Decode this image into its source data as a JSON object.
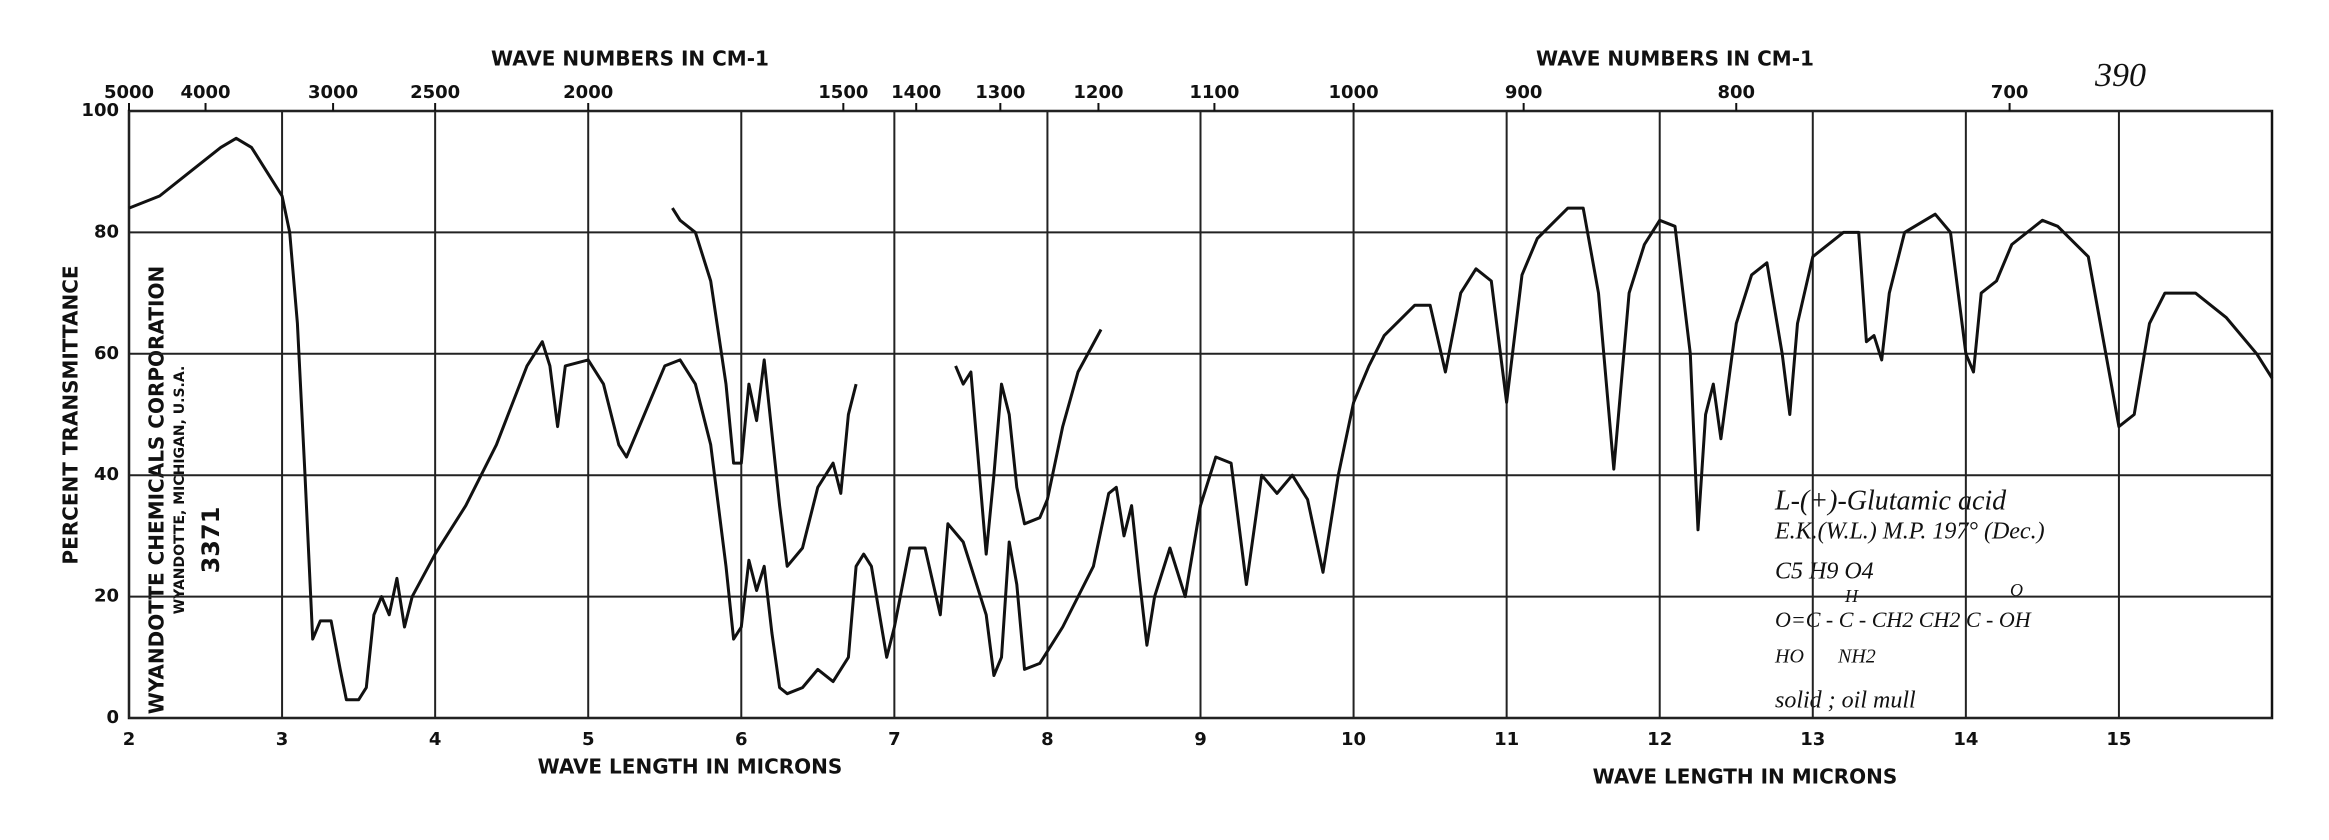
{
  "chart_data": {
    "type": "line",
    "title": "WAVE NUMBERS IN CM-1",
    "x_label": "WAVE LENGTH IN MICRONS",
    "y_label": "PERCENT TRANSMITTANCE",
    "xlim": [
      2,
      16
    ],
    "xticks": [
      2,
      3,
      4,
      5,
      6,
      7,
      8,
      9,
      10,
      11,
      12,
      13,
      14,
      15
    ],
    "ylim": [
      0,
      100
    ],
    "yticks": [
      0,
      20,
      40,
      60,
      80,
      100
    ],
    "x2ticks": [
      5000,
      4000,
      3000,
      2500,
      2000,
      1500,
      1400,
      1300,
      1200,
      1100,
      1000,
      900,
      800,
      700
    ],
    "grid": true,
    "annotations": [
      "390",
      "WYANDOTTE CHEMICALS CORPORATION",
      "WYANDOTTE, MICHIGAN, U.S.A.",
      "3371",
      "L-(+)-Glutamic acid",
      "E.K.(W.L.)  M.P. 197° (Dec.)",
      "C5 H9 O4",
      "O=C - C - CH2 CH2 C - OH",
      "HO",
      "H",
      "NH2",
      "O",
      "solid ; oil mull"
    ],
    "series": [
      {
        "color": "#111111",
        "x": [
          2,
          2.2,
          2.4,
          2.6,
          2.7,
          2.8,
          2.9,
          3,
          3.05,
          3.1,
          3.15,
          3.2,
          3.25,
          3.32,
          3.38,
          3.42,
          3.5,
          3.55,
          3.6,
          3.65,
          3.7,
          3.75,
          3.8,
          3.85,
          4,
          4.2,
          4.4,
          4.6,
          4.7,
          4.75,
          4.8,
          4.85,
          5,
          5.1,
          5.2,
          5.25,
          5.4,
          5.5,
          5.6,
          5.7,
          5.8,
          5.9,
          5.95,
          6,
          6.05,
          6.1,
          6.15,
          6.2,
          6.25,
          6.3,
          6.4,
          6.5,
          6.6,
          6.7,
          6.75,
          6.8,
          6.85,
          6.95,
          7,
          7.1,
          7.2,
          7.3,
          7.35,
          7.45,
          7.5,
          7.6,
          7.65,
          7.7,
          7.75,
          7.8,
          7.85,
          7.95,
          8.1,
          8.3,
          8.4,
          8.45,
          8.5,
          8.55,
          8.6,
          8.65,
          8.7,
          8.8,
          8.9,
          9,
          9.1,
          9.2,
          9.3,
          9.4,
          9.5,
          9.6,
          9.7,
          9.8,
          9.9,
          10,
          10.1,
          10.2,
          10.4,
          10.5,
          10.6,
          10.7,
          10.8,
          10.9,
          11,
          11.1,
          11.2,
          11.4,
          11.5,
          11.6,
          11.7,
          11.8,
          11.9,
          12,
          12.1,
          12.2,
          12.25,
          12.3,
          12.35,
          12.4,
          12.5,
          12.6,
          12.7,
          12.8,
          12.85,
          12.9,
          13,
          13.2,
          13.3,
          13.35,
          13.4,
          13.45,
          13.5,
          13.6,
          13.8,
          13.9,
          14,
          14.05,
          14.1,
          14.2,
          14.3,
          14.5,
          14.6,
          14.8,
          14.95,
          15,
          15.1,
          15.2,
          15.3,
          15.5,
          15.7,
          15.9,
          16
        ],
        "values": [
          84,
          86,
          90,
          94,
          95.5,
          94,
          90,
          86,
          80,
          65,
          40,
          13,
          16,
          16,
          8,
          3,
          3,
          5,
          17,
          20,
          17,
          23,
          15,
          20,
          27,
          35,
          45,
          58,
          62,
          58,
          48,
          58,
          59,
          55,
          45,
          43,
          52,
          58,
          59,
          55,
          45,
          25,
          13,
          15,
          26,
          21,
          25,
          14,
          5,
          4,
          5,
          8,
          6,
          10,
          25,
          27,
          25,
          10,
          15,
          28,
          28,
          17,
          32,
          29,
          25,
          17,
          7,
          10,
          29,
          22,
          8,
          9,
          15,
          25,
          37,
          38,
          30,
          35,
          23,
          12,
          20,
          28,
          20,
          35,
          43,
          42,
          22,
          40,
          37,
          40,
          36,
          24,
          40,
          52,
          58,
          63,
          68,
          68,
          57,
          70,
          74,
          72,
          52,
          73,
          79,
          84,
          84,
          70,
          41,
          70,
          78,
          82,
          81,
          60,
          31,
          50,
          55,
          46,
          65,
          73,
          75,
          60,
          50,
          65,
          76,
          80,
          80,
          62,
          63,
          59,
          70,
          80,
          83,
          80,
          60,
          57,
          70,
          72,
          78,
          82,
          81,
          76,
          55,
          48,
          50,
          65,
          70,
          70,
          66,
          60,
          56
        ]
      },
      {
        "color": "#111111",
        "x": [
          5.55,
          5.6,
          5.7,
          5.8,
          5.9,
          5.95,
          6,
          6.05,
          6.1,
          6.15,
          6.25,
          6.3,
          6.4,
          6.5,
          6.6,
          6.65,
          6.7,
          6.75,
          7.05,
          7.4,
          7.45,
          7.5,
          7.6,
          7.65,
          7.7,
          7.75,
          7.8,
          7.85,
          7.95,
          8,
          8.1,
          8.2,
          8.35
        ],
        "values": [
          84,
          82,
          80,
          72,
          55,
          42,
          42,
          55,
          49,
          59,
          35,
          25,
          28,
          38,
          42,
          37,
          50,
          55,
          null,
          58,
          55,
          57,
          27,
          40,
          55,
          50,
          38,
          32,
          33,
          36,
          48,
          57,
          64
        ]
      }
    ]
  }
}
